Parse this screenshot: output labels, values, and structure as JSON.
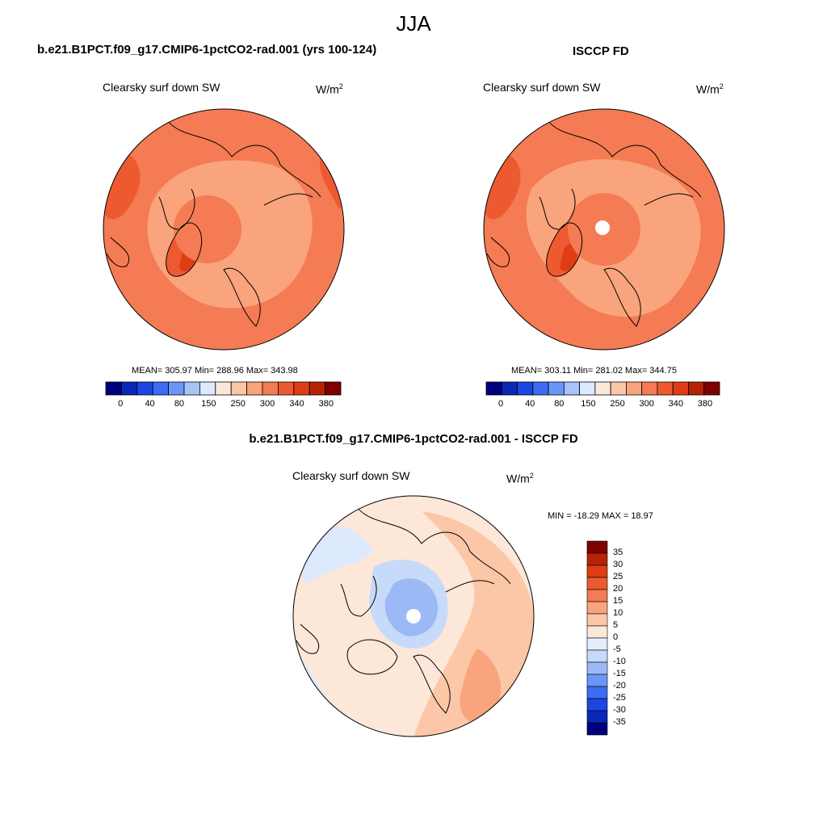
{
  "suptitle": "JJA",
  "panels": [
    {
      "title": "b.e21.B1PCT.f09_g17.CMIP6-1pctCO2-rad.001 (yrs 100-124)",
      "variable": "Clearsky surf down SW",
      "units_base": "W/m",
      "units_exp": "2",
      "stats": "MEAN= 305.97  Min= 288.96  Max= 343.98"
    },
    {
      "title": "ISCCP FD",
      "variable": "Clearsky surf down SW",
      "units_base": "W/m",
      "units_exp": "2",
      "stats": "MEAN= 303.11  Min= 281.02  Max= 344.75"
    },
    {
      "title": "b.e21.B1PCT.f09_g17.CMIP6-1pctCO2-rad.001 - ISCCP FD",
      "variable": "Clearsky surf down SW",
      "units_base": "W/m",
      "units_exp": "2",
      "stats": "MIN = -18.29 MAX =  18.97"
    }
  ],
  "colorbar_abs": {
    "colors": [
      "#00007f",
      "#0a27b8",
      "#1b46e0",
      "#3b6cf2",
      "#6a97f7",
      "#a6c4fa",
      "#dde9fd",
      "#fde7d9",
      "#fcc7a7",
      "#f9a47c",
      "#f47b53",
      "#ee5a30",
      "#df3d14",
      "#b82204",
      "#7f0000"
    ],
    "labels": [
      "0",
      "40",
      "80",
      "150",
      "250",
      "300",
      "340",
      "380"
    ]
  },
  "colorbar_diff": {
    "colors": [
      "#7f0000",
      "#b82204",
      "#df3d14",
      "#ee5a30",
      "#f47b53",
      "#f9a47c",
      "#fcc7a7",
      "#fde7d9",
      "#e4eefd",
      "#c7daf9",
      "#9bbaf5",
      "#6a97f7",
      "#3b6cf2",
      "#1b46e0",
      "#0a27b8",
      "#00007f"
    ],
    "labels": [
      "35",
      "30",
      "25",
      "20",
      "15",
      "10",
      "5",
      "0",
      "-5",
      "-10",
      "-15",
      "-20",
      "-25",
      "-30",
      "-35"
    ]
  }
}
